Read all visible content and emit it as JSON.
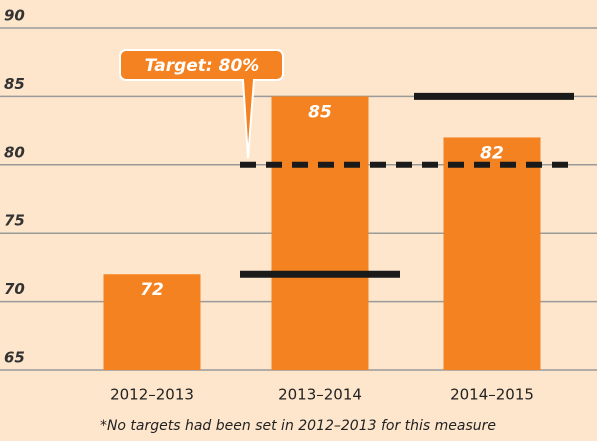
{
  "chart_data": {
    "type": "bar",
    "categories": [
      "2012–2013",
      "2013–2014",
      "2014–2015"
    ],
    "values": [
      72,
      85,
      82
    ],
    "color": "#f58220",
    "markers": [
      null,
      72,
      85
    ],
    "marker_color": "#1a1a1a",
    "target": {
      "value": 80,
      "text": "Target: 80%"
    },
    "ylim": [
      65,
      90
    ],
    "yticks": [
      65,
      70,
      75,
      80,
      85,
      90
    ],
    "grid": true,
    "footnote": "*No targets had been set in 2012–2013 for this measure"
  }
}
